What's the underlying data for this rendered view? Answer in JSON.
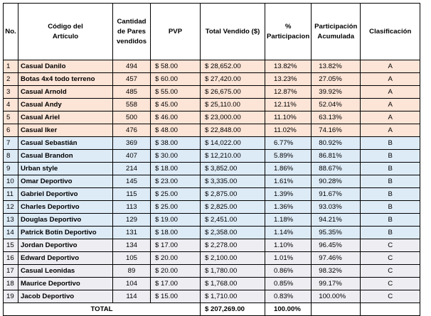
{
  "headers": {
    "no": "No.",
    "codigo": "Código del Artículo",
    "cantidad": "Cantidad de Pares vendidos",
    "pvp": "PVP",
    "total_vendido": "Total Vendido ($)",
    "pct": "% Participacion",
    "acum": "Participación Acumulada",
    "clasificacion": "Clasificación"
  },
  "rows": [
    {
      "no": "1",
      "name": "Casual Danilo",
      "qty": "494",
      "pvp": "$ 58.00",
      "total": "$ 28,652.00",
      "pct": "13.82%",
      "acc": "13.82%",
      "cls": "A"
    },
    {
      "no": "2",
      "name": "Botas 4x4 todo terreno",
      "qty": "457",
      "pvp": "$ 60.00",
      "total": "$ 27,420.00",
      "pct": "13.23%",
      "acc": "27.05%",
      "cls": "A"
    },
    {
      "no": "3",
      "name": "Casual Arnold",
      "qty": "485",
      "pvp": "$ 55.00",
      "total": "$ 26,675.00",
      "pct": "12.87%",
      "acc": "39.92%",
      "cls": "A"
    },
    {
      "no": "4",
      "name": "Casual Andy",
      "qty": "558",
      "pvp": "$ 45.00",
      "total": "$ 25,110.00",
      "pct": "12.11%",
      "acc": "52.04%",
      "cls": "A"
    },
    {
      "no": "5",
      "name": "Casual Ariel",
      "qty": "500",
      "pvp": "$ 46.00",
      "total": "$ 23,000.00",
      "pct": "11.10%",
      "acc": "63.13%",
      "cls": "A"
    },
    {
      "no": "6",
      "name": "Casual Iker",
      "qty": "476",
      "pvp": "$ 48.00",
      "total": "$ 22,848.00",
      "pct": "11.02%",
      "acc": "74.16%",
      "cls": "A"
    },
    {
      "no": "7",
      "name": "Casual Sebastián",
      "qty": "369",
      "pvp": "$ 38.00",
      "total": "$ 14,022.00",
      "pct": "6.77%",
      "acc": "80.92%",
      "cls": "B"
    },
    {
      "no": "8",
      "name": "Casual Brandon",
      "qty": "407",
      "pvp": "$ 30.00",
      "total": "$ 12,210.00",
      "pct": "5.89%",
      "acc": "86.81%",
      "cls": "B"
    },
    {
      "no": "9",
      "name": "Urban style",
      "qty": "214",
      "pvp": "$ 18.00",
      "total": "$ 3,852.00",
      "pct": "1.86%",
      "acc": "88.67%",
      "cls": "B"
    },
    {
      "no": "10",
      "name": "Omar Deportivo",
      "qty": "145",
      "pvp": "$ 23.00",
      "total": "$ 3,335.00",
      "pct": "1.61%",
      "acc": "90.28%",
      "cls": "B"
    },
    {
      "no": "11",
      "name": "Gabriel Deportivo",
      "qty": "115",
      "pvp": "$ 25.00",
      "total": "$ 2,875.00",
      "pct": "1.39%",
      "acc": "91.67%",
      "cls": "B"
    },
    {
      "no": "12",
      "name": "Charles Deportivo",
      "qty": "113",
      "pvp": "$ 25.00",
      "total": "$ 2,825.00",
      "pct": "1.36%",
      "acc": "93.03%",
      "cls": "B"
    },
    {
      "no": "13",
      "name": "Douglas Deportivo",
      "qty": "129",
      "pvp": "$ 19.00",
      "total": "$ 2,451.00",
      "pct": "1.18%",
      "acc": "94.21%",
      "cls": "B"
    },
    {
      "no": "14",
      "name": "Patrick Botin Deportivo",
      "qty": "131",
      "pvp": "$ 18.00",
      "total": "$ 2,358.00",
      "pct": "1.14%",
      "acc": "95.35%",
      "cls": "B"
    },
    {
      "no": "15",
      "name": "Jordan Deportivo",
      "qty": "134",
      "pvp": "$ 17.00",
      "total": "$ 2,278.00",
      "pct": "1.10%",
      "acc": "96.45%",
      "cls": "C"
    },
    {
      "no": "16",
      "name": "Edward Deportivo",
      "qty": "105",
      "pvp": "$ 20.00",
      "total": "$ 2,100.00",
      "pct": "1.01%",
      "acc": "97.46%",
      "cls": "C"
    },
    {
      "no": "17",
      "name": "Casual Leonidas",
      "qty": "89",
      "pvp": "$ 20.00",
      "total": "$ 1,780.00",
      "pct": "0.86%",
      "acc": "98.32%",
      "cls": "C"
    },
    {
      "no": "18",
      "name": "Maurice Deportivo",
      "qty": "104",
      "pvp": "$ 17.00",
      "total": "$ 1,768.00",
      "pct": "0.85%",
      "acc": "99.17%",
      "cls": "C"
    },
    {
      "no": "19",
      "name": "Jacob Deportivo",
      "qty": "114",
      "pvp": "$ 15.00",
      "total": "$ 1,710.00",
      "pct": "0.83%",
      "acc": "100.00%",
      "cls": "C"
    }
  ],
  "total": {
    "label": "TOTAL",
    "total_vendido": "$ 207,269.00",
    "pct": "100.00%"
  },
  "colors": {
    "class_a": "#fce4d6",
    "class_b": "#ddebf7",
    "class_c": "#ededf2"
  }
}
